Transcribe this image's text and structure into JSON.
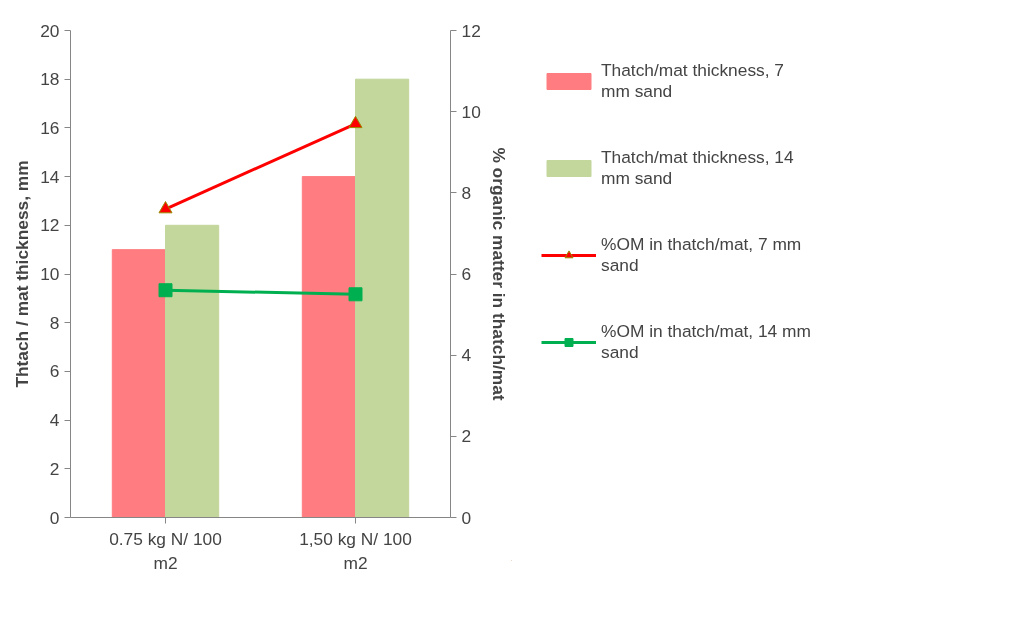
{
  "chart_data": {
    "type": "bar",
    "categories": [
      "0.75 kg N/ 100 m2",
      "1,50 kg N/ 100 m2"
    ],
    "ylabel": "Thtach / mat thickness, mm",
    "y2label": "% organic matter in thatch/mat",
    "ylim": [
      0,
      20
    ],
    "yticks": [
      0,
      2,
      4,
      6,
      8,
      10,
      12,
      14,
      16,
      18,
      20
    ],
    "y2lim": [
      0,
      12
    ],
    "y2ticks": [
      0,
      2,
      4,
      6,
      8,
      10,
      12
    ],
    "grid": false,
    "legend": "right",
    "series": [
      {
        "name": "Thatch/mat thickness, 7 mm sand",
        "color": "#ff7c80",
        "values": [
          11,
          14
        ]
      },
      {
        "name": "Thatch/mat thickness, 14 mm sand",
        "color": "#c3d69b",
        "values": [
          12,
          18
        ]
      },
      {
        "name": "%OM in thatch/mat, 7 mm sand",
        "type": "line",
        "axis": "y2",
        "marker": "triangle",
        "color": "#ff0000",
        "values": [
          7.6,
          9.7
        ]
      },
      {
        "name": "%OM in thatch/mat, 14 mm sand",
        "type": "line",
        "axis": "y2",
        "marker": "square",
        "color": "#00b050",
        "values": [
          5.6,
          5.5
        ]
      }
    ]
  }
}
